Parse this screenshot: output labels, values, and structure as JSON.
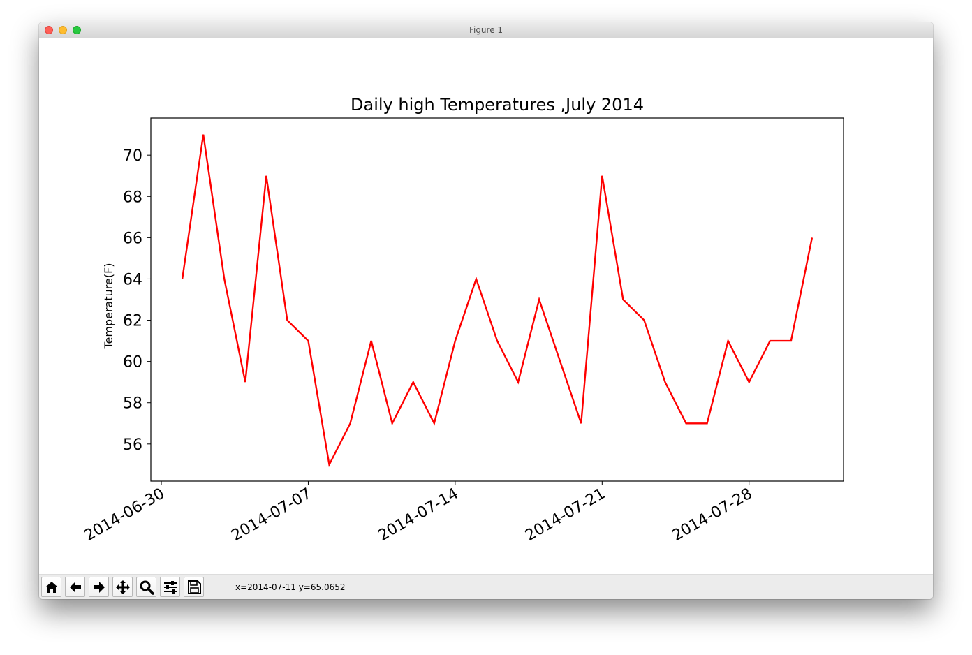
{
  "window": {
    "title": "Figure 1"
  },
  "toolbar": {
    "buttons": [
      {
        "icon": "home-icon"
      },
      {
        "icon": "back-arrow-icon"
      },
      {
        "icon": "forward-arrow-icon"
      },
      {
        "icon": "pan-move-icon"
      },
      {
        "icon": "zoom-magnifier-icon"
      },
      {
        "icon": "subplots-sliders-icon"
      },
      {
        "icon": "save-floppy-icon"
      }
    ],
    "coords_text": "x=2014-07-11 y=65.0652"
  },
  "chart_data": {
    "type": "line",
    "title": "Daily high Temperatures ,July 2014",
    "xlabel": "",
    "ylabel": "Temperature(F)",
    "x": [
      "2014-07-01",
      "2014-07-02",
      "2014-07-03",
      "2014-07-04",
      "2014-07-05",
      "2014-07-06",
      "2014-07-07",
      "2014-07-08",
      "2014-07-09",
      "2014-07-10",
      "2014-07-11",
      "2014-07-12",
      "2014-07-13",
      "2014-07-14",
      "2014-07-15",
      "2014-07-16",
      "2014-07-17",
      "2014-07-18",
      "2014-07-19",
      "2014-07-20",
      "2014-07-21",
      "2014-07-22",
      "2014-07-23",
      "2014-07-24",
      "2014-07-25",
      "2014-07-26",
      "2014-07-27",
      "2014-07-28",
      "2014-07-29",
      "2014-07-30",
      "2014-07-31"
    ],
    "series": [
      {
        "values": [
          64,
          71,
          64,
          59,
          69,
          62,
          61,
          55,
          57,
          61,
          57,
          59,
          57,
          61,
          64,
          61,
          59,
          63,
          60,
          57,
          69,
          63,
          62,
          59,
          57,
          57,
          61,
          59,
          61,
          61,
          66
        ],
        "color": "#ff0000"
      }
    ],
    "x_ticks": [
      "2014-06-30",
      "2014-07-07",
      "2014-07-14",
      "2014-07-21",
      "2014-07-28"
    ],
    "y_ticks": [
      56,
      58,
      60,
      62,
      64,
      66,
      68,
      70
    ],
    "xlim": [
      "2014-06-29.5",
      "2014-08-01.5"
    ],
    "ylim": [
      54.2,
      71.8
    ],
    "grid": false
  }
}
